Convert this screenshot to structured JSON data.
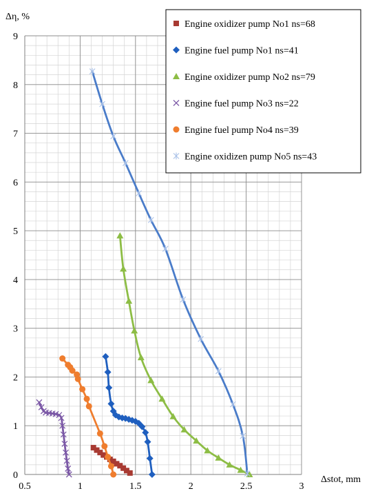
{
  "chart_data": {
    "type": "line",
    "title": "",
    "xlabel": "Δstot, mm",
    "ylabel": "Δη, %",
    "xlim": [
      0.5,
      3
    ],
    "ylim": [
      0,
      9
    ],
    "x_major_ticks": [
      0.5,
      1,
      1.5,
      2,
      2.5,
      3
    ],
    "x_tick_labels": [
      "0.5",
      "1",
      "1.5",
      "2",
      "2.5",
      "3"
    ],
    "y_major_ticks": [
      0,
      1,
      2,
      3,
      4,
      5,
      6,
      7,
      8,
      9
    ],
    "y_tick_labels": [
      "0",
      "1",
      "2",
      "3",
      "4",
      "5",
      "6",
      "7",
      "8",
      "9"
    ],
    "grid": true,
    "minor_grid_x_step": 0.1,
    "minor_grid_y_step": 0.2,
    "legend_position": "top-right",
    "series": [
      {
        "name": "Engine oxidizer pump No1 ns=68",
        "marker": "square",
        "color": "#a83a32",
        "x": [
          1.12,
          1.15,
          1.18,
          1.21,
          1.24,
          1.27,
          1.3,
          1.33,
          1.36,
          1.39,
          1.42,
          1.45
        ],
        "y": [
          0.55,
          0.5,
          0.45,
          0.4,
          0.36,
          0.31,
          0.27,
          0.22,
          0.18,
          0.13,
          0.08,
          0.03
        ]
      },
      {
        "name": "Engine fuel pump No1 ns=41",
        "marker": "diamond",
        "color": "#1f5fbf",
        "x": [
          1.23,
          1.25,
          1.26,
          1.28,
          1.3,
          1.32,
          1.35,
          1.38,
          1.41,
          1.44,
          1.47,
          1.5,
          1.53,
          1.56,
          1.59,
          1.61,
          1.63,
          1.65
        ],
        "y": [
          2.42,
          2.1,
          1.78,
          1.45,
          1.3,
          1.22,
          1.18,
          1.16,
          1.15,
          1.13,
          1.11,
          1.09,
          1.05,
          0.98,
          0.86,
          0.67,
          0.33,
          0.0
        ]
      },
      {
        "name": "Engine oxidizer pump No2 ns=79",
        "marker": "triangle",
        "color": "#8dbd45",
        "x": [
          1.36,
          1.39,
          1.44,
          1.49,
          1.55,
          1.64,
          1.74,
          1.84,
          1.94,
          2.05,
          2.15,
          2.25,
          2.35,
          2.45,
          2.53
        ],
        "y": [
          4.9,
          4.22,
          3.56,
          2.95,
          2.4,
          1.93,
          1.55,
          1.19,
          0.92,
          0.69,
          0.49,
          0.34,
          0.2,
          0.09,
          0.0
        ]
      },
      {
        "name": "Engine fuel pump No3 ns=22",
        "marker": "x",
        "color": "#7b58a6",
        "x": [
          0.63,
          0.65,
          0.67,
          0.69,
          0.72,
          0.75,
          0.78,
          0.81,
          0.83,
          0.84,
          0.85,
          0.86,
          0.87,
          0.88,
          0.89,
          0.9
        ],
        "y": [
          1.48,
          1.38,
          1.3,
          1.27,
          1.26,
          1.25,
          1.24,
          1.22,
          1.16,
          1.0,
          0.82,
          0.63,
          0.45,
          0.28,
          0.12,
          0.0
        ]
      },
      {
        "name": "Engine fuel pump No4 ns=39",
        "marker": "circle",
        "color": "#ef7d2e",
        "x": [
          0.84,
          0.89,
          0.91,
          0.93,
          0.97,
          0.98,
          1.02,
          1.06,
          1.08,
          1.18,
          1.22,
          1.25,
          1.28,
          1.3
        ],
        "y": [
          2.38,
          2.25,
          2.2,
          2.13,
          2.05,
          1.96,
          1.75,
          1.55,
          1.4,
          0.84,
          0.58,
          0.36,
          0.17,
          0.0
        ]
      },
      {
        "name": "Engine oxidizen pump No5 ns=43",
        "marker": "star",
        "color": "#4a7cc9",
        "line_color": "#4a7cc9",
        "marker_color": "#a9c1e8",
        "x": [
          1.11,
          1.2,
          1.3,
          1.41,
          1.53,
          1.64,
          1.77,
          1.93,
          2.09,
          2.25,
          2.38,
          2.47,
          2.51
        ],
        "y": [
          8.27,
          7.6,
          6.94,
          6.39,
          5.77,
          5.22,
          4.63,
          3.59,
          2.78,
          2.12,
          1.44,
          0.79,
          0.02
        ]
      }
    ]
  }
}
